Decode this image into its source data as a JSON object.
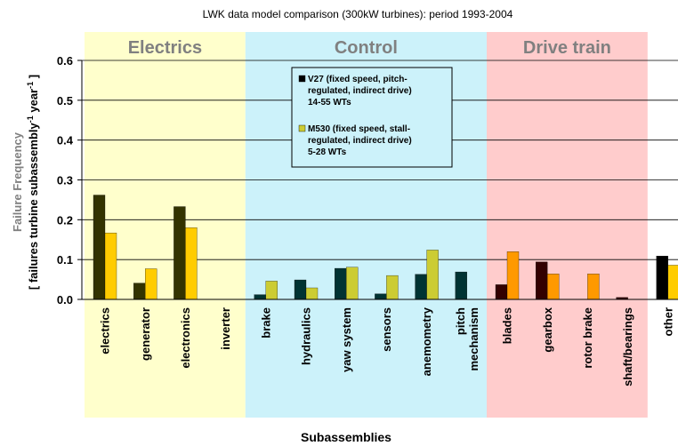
{
  "chart_data": {
    "type": "bar",
    "title": "LWK data model comparison (300kW turbines): period 1993-2004",
    "xlabel": "Subassemblies",
    "ylabel_line1": "Failure Frequency",
    "ylabel_line2_prefix": "[ failures turbine subassembly",
    "ylabel_line2_sup1": "-1",
    "ylabel_line2_mid": " year",
    "ylabel_line2_sup2": "-1",
    "ylabel_line2_suffix": " ]",
    "ylim": [
      0,
      0.6
    ],
    "yticks": [
      "0.0",
      "0.1",
      "0.2",
      "0.3",
      "0.4",
      "0.5",
      "0.6"
    ],
    "grid": true,
    "categories": [
      {
        "lines": [
          "electrics"
        ]
      },
      {
        "lines": [
          "generator"
        ]
      },
      {
        "lines": [
          "electronics"
        ]
      },
      {
        "lines": [
          "inverter"
        ]
      },
      {
        "lines": [
          "brake"
        ]
      },
      {
        "lines": [
          "hydraulics"
        ]
      },
      {
        "lines": [
          "yaw system"
        ]
      },
      {
        "lines": [
          "sensors"
        ]
      },
      {
        "lines": [
          "anemometry"
        ]
      },
      {
        "lines": [
          "pitch",
          "mechanism"
        ]
      },
      {
        "lines": [
          "blades"
        ]
      },
      {
        "lines": [
          "gearbox"
        ]
      },
      {
        "lines": [
          "rotor brake"
        ]
      },
      {
        "lines": [
          "shaft/bearings"
        ]
      },
      {
        "lines": [
          "other"
        ]
      }
    ],
    "groups": [
      {
        "label": "Electrics",
        "from": 0,
        "to": 3,
        "color": "#ffffcc"
      },
      {
        "label": "Control",
        "from": 4,
        "to": 9,
        "color": "#ccf2fa"
      },
      {
        "label": "Drive train",
        "from": 10,
        "to": 13,
        "color": "#ffcccc"
      }
    ],
    "series": [
      {
        "lines": [
          "V27 (fixed speed, pitch-",
          "regulated, indirect drive)",
          "14-55 WTs"
        ],
        "values": [
          0.262,
          0.041,
          0.233,
          0,
          0.012,
          0.049,
          0.078,
          0.014,
          0.063,
          0.069,
          0.037,
          0.094,
          0,
          0.005,
          0.109
        ],
        "colors": [
          "#333300",
          "#333300",
          "#333300",
          "#333300",
          "#003333",
          "#003333",
          "#003333",
          "#003333",
          "#003333",
          "#003333",
          "#330000",
          "#330000",
          "#330000",
          "#330000",
          "#000000"
        ],
        "legend_color": "#000000"
      },
      {
        "lines": [
          "M530 (fixed speed, stall-",
          "regulated, indirect drive)",
          "5-28 WTs"
        ],
        "values": [
          0.167,
          0.077,
          0.18,
          0,
          0.046,
          0.029,
          0.081,
          0.06,
          0.124,
          0,
          0.12,
          0.064,
          0.064,
          0,
          0.086
        ],
        "colors": [
          "#ffcc00",
          "#ffcc00",
          "#ffcc00",
          "#ffcc00",
          "#cccc33",
          "#cccc33",
          "#cccc33",
          "#cccc33",
          "#cccc33",
          "#cccc33",
          "#ff9900",
          "#ff9900",
          "#ff9900",
          "#ff9900",
          "#ffcc00"
        ],
        "legend_color": "#cccc33"
      }
    ],
    "legend_box_color": "#ccf2fa"
  }
}
